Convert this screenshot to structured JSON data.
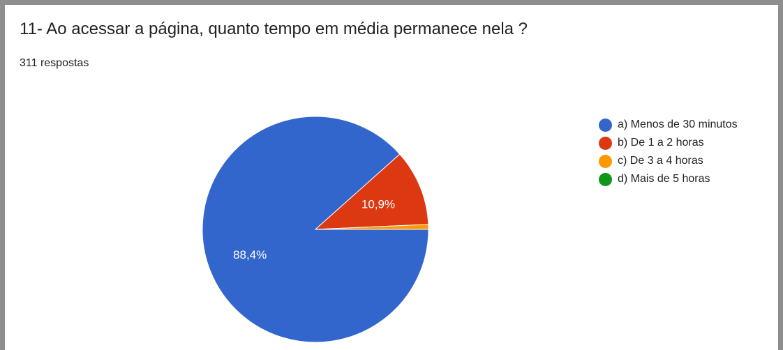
{
  "title": "11- Ao acessar a página, quanto tempo em média permanece nela ?",
  "response_count": "311 respostas",
  "legend": [
    {
      "label": "a) Menos de 30 minutos",
      "color": "#3366cc"
    },
    {
      "label": "b) De 1 a 2 horas",
      "color": "#dc3912"
    },
    {
      "label": "c) De 3 a 4 horas",
      "color": "#ff9900"
    },
    {
      "label": "d) Mais de 5 horas",
      "color": "#109618"
    }
  ],
  "chart_data": {
    "type": "pie",
    "title": "11- Ao acessar a página, quanto tempo em média permanece nela ?",
    "categories": [
      "a) Menos de 30 minutos",
      "b) De 1 a 2 horas",
      "c) De 3 a 4 horas",
      "d) Mais de 5 horas"
    ],
    "values": [
      88.4,
      10.9,
      0.7,
      0
    ],
    "data_labels": [
      "88,4%",
      "10,9%",
      "",
      ""
    ],
    "colors": [
      "#3366cc",
      "#dc3912",
      "#ff9900",
      "#109618"
    ],
    "legend_position": "right"
  }
}
